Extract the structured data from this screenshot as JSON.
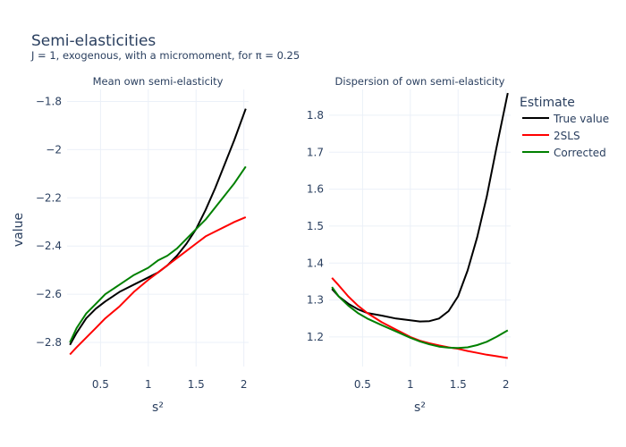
{
  "title": "Semi-elasticities",
  "subtitle": "J = 1, exogenous, with a micromoment,  for π = 0.25",
  "legend": {
    "title": "Estimate",
    "items": [
      {
        "name": "True value",
        "color": "#000000"
      },
      {
        "name": "2SLS",
        "color": "#ff0000"
      },
      {
        "name": "Corrected",
        "color": "#008000"
      }
    ]
  },
  "chart_data": [
    {
      "type": "line",
      "title": "Mean own semi-elasticity",
      "xlabel": "s²",
      "ylabel": "value",
      "xlim": [
        0.15,
        2.05
      ],
      "ylim": [
        -2.9,
        -1.75
      ],
      "xticks": [
        0.5,
        1,
        1.5,
        2
      ],
      "xtick_labels": [
        "0.5",
        "1",
        "1.5",
        "2"
      ],
      "yticks": [
        -2.8,
        -2.6,
        -2.4,
        -2.2,
        -2,
        -1.8
      ],
      "ytick_labels": [
        "−2.8",
        "−2.6",
        "−2.4",
        "−2.2",
        "−2",
        "−1.8"
      ],
      "grid": true,
      "x": [
        0.18,
        0.25,
        0.35,
        0.45,
        0.55,
        0.7,
        0.85,
        1.0,
        1.1,
        1.2,
        1.3,
        1.4,
        1.5,
        1.6,
        1.7,
        1.8,
        1.9,
        2.02
      ],
      "series": [
        {
          "name": "True value",
          "color": "#000000",
          "values": [
            -2.81,
            -2.76,
            -2.7,
            -2.66,
            -2.63,
            -2.59,
            -2.56,
            -2.53,
            -2.51,
            -2.48,
            -2.44,
            -2.39,
            -2.33,
            -2.25,
            -2.16,
            -2.06,
            -1.96,
            -1.83
          ]
        },
        {
          "name": "2SLS",
          "color": "#ff0000",
          "values": [
            -2.85,
            -2.82,
            -2.78,
            -2.74,
            -2.7,
            -2.65,
            -2.59,
            -2.54,
            -2.51,
            -2.48,
            -2.45,
            -2.42,
            -2.39,
            -2.36,
            -2.34,
            -2.32,
            -2.3,
            -2.28
          ]
        },
        {
          "name": "Corrected",
          "color": "#008000",
          "values": [
            -2.8,
            -2.74,
            -2.68,
            -2.64,
            -2.6,
            -2.56,
            -2.52,
            -2.49,
            -2.46,
            -2.44,
            -2.41,
            -2.37,
            -2.33,
            -2.29,
            -2.24,
            -2.19,
            -2.14,
            -2.07
          ]
        }
      ]
    },
    {
      "type": "line",
      "title": "Dispersion of own semi-elasticity",
      "xlabel": "s²",
      "ylabel": "",
      "xlim": [
        0.15,
        2.05
      ],
      "ylim": [
        1.12,
        1.87
      ],
      "xticks": [
        0.5,
        1,
        1.5,
        2
      ],
      "xtick_labels": [
        "0.5",
        "1",
        "1.5",
        "2"
      ],
      "yticks": [
        1.2,
        1.3,
        1.4,
        1.5,
        1.6,
        1.7,
        1.8
      ],
      "ytick_labels": [
        "1.2",
        "1.3",
        "1.4",
        "1.5",
        "1.6",
        "1.7",
        "1.8"
      ],
      "grid": true,
      "x": [
        0.18,
        0.25,
        0.35,
        0.45,
        0.55,
        0.7,
        0.85,
        1.0,
        1.1,
        1.2,
        1.3,
        1.4,
        1.5,
        1.6,
        1.7,
        1.8,
        1.9,
        2.02
      ],
      "series": [
        {
          "name": "True value",
          "color": "#000000",
          "values": [
            1.33,
            1.31,
            1.29,
            1.275,
            1.265,
            1.258,
            1.25,
            1.245,
            1.242,
            1.243,
            1.25,
            1.27,
            1.31,
            1.38,
            1.47,
            1.58,
            1.71,
            1.86
          ]
        },
        {
          "name": "2SLS",
          "color": "#ff0000",
          "values": [
            1.36,
            1.34,
            1.31,
            1.285,
            1.265,
            1.24,
            1.22,
            1.2,
            1.19,
            1.183,
            1.177,
            1.172,
            1.168,
            1.162,
            1.157,
            1.152,
            1.148,
            1.143
          ]
        },
        {
          "name": "Corrected",
          "color": "#008000",
          "values": [
            1.335,
            1.31,
            1.285,
            1.265,
            1.25,
            1.232,
            1.215,
            1.198,
            1.188,
            1.18,
            1.174,
            1.171,
            1.17,
            1.172,
            1.178,
            1.187,
            1.2,
            1.218
          ]
        }
      ]
    }
  ]
}
